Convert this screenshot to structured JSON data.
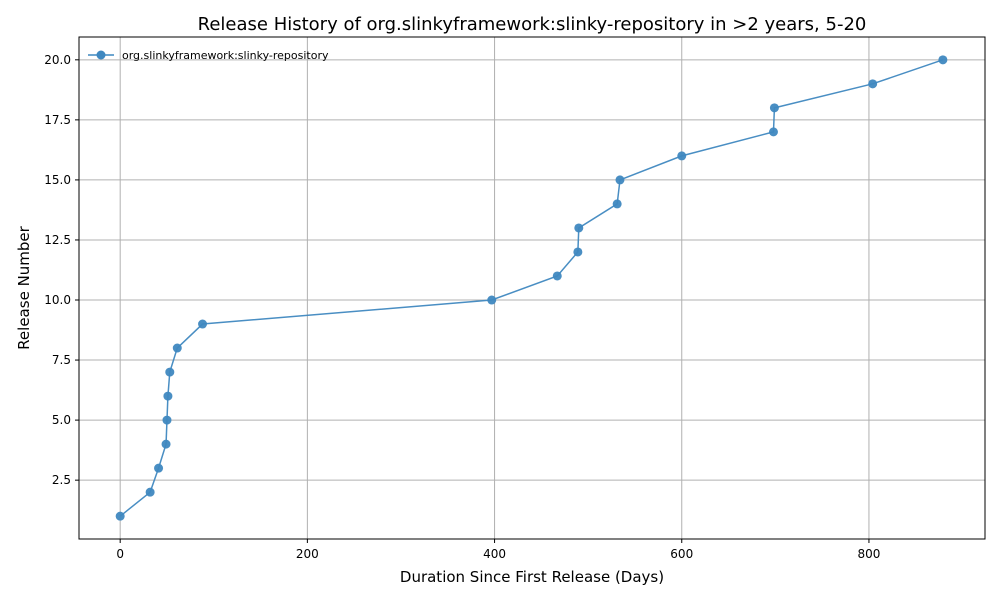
{
  "chart_data": {
    "type": "line",
    "title": "Release History of org.slinkyframework:slinky-repository in >2 years, 5-20",
    "xlabel": "Duration Since First Release (Days)",
    "ylabel": "Release Number",
    "xlim": [
      -44,
      924
    ],
    "ylim": [
      0.05,
      20.95
    ],
    "xticks": [
      0,
      200,
      400,
      600,
      800
    ],
    "yticks": [
      2.5,
      5.0,
      7.5,
      10.0,
      12.5,
      15.0,
      17.5,
      20.0
    ],
    "xtick_labels": [
      "0",
      "200",
      "400",
      "600",
      "800"
    ],
    "ytick_labels": [
      "2.5",
      "5.0",
      "7.5",
      "10.0",
      "12.5",
      "15.0",
      "17.5",
      "20.0"
    ],
    "grid": true,
    "legend_position": "top-left",
    "color": "#3f88c0",
    "series": [
      {
        "name": "org.slinkyframework:slinky-repository",
        "x": [
          0,
          32,
          41,
          49,
          50,
          51,
          53,
          61,
          88,
          397,
          467,
          489,
          490,
          531,
          534,
          600,
          698,
          699,
          804,
          879
        ],
        "y": [
          1,
          2,
          3,
          4,
          5,
          6,
          7,
          8,
          9,
          10,
          11,
          12,
          13,
          14,
          15,
          16,
          17,
          18,
          19,
          20
        ]
      }
    ]
  }
}
